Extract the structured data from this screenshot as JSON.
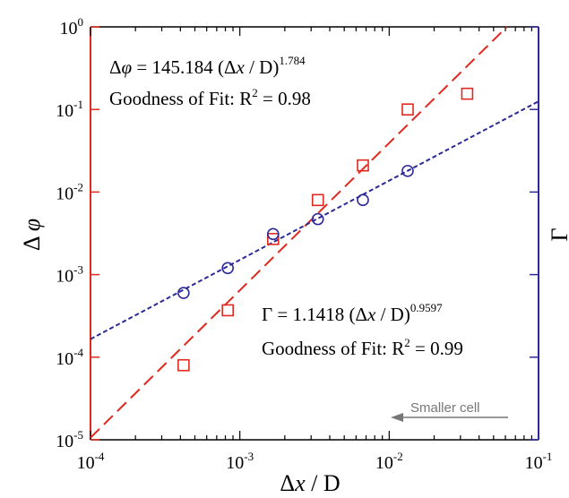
{
  "chart_data": {
    "type": "scatter",
    "xscale": "log",
    "yscale": "log",
    "xlim": [
      0.0001,
      0.1
    ],
    "ylim": [
      1e-05,
      1
    ],
    "xlabel_parts": [
      "Δ",
      "x",
      " / D"
    ],
    "ylabel_parts": [
      "Δ ",
      "φ"
    ],
    "right_label": "Γ",
    "x_ticks": [
      {
        "value": 0.0001,
        "base": "10",
        "exp": "-4"
      },
      {
        "value": 0.001,
        "base": "10",
        "exp": "-3"
      },
      {
        "value": 0.01,
        "base": "10",
        "exp": "-2"
      },
      {
        "value": 0.1,
        "base": "10",
        "exp": "-1"
      }
    ],
    "y_ticks": [
      {
        "value": 1,
        "base": "10",
        "exp": "0"
      },
      {
        "value": 0.1,
        "base": "10",
        "exp": "-1"
      },
      {
        "value": 0.01,
        "base": "10",
        "exp": "-2"
      },
      {
        "value": 0.001,
        "base": "10",
        "exp": "-3"
      },
      {
        "value": 0.0001,
        "base": "10",
        "exp": "-4"
      },
      {
        "value": 1e-05,
        "base": "10",
        "exp": "-5"
      }
    ],
    "series": [
      {
        "marker": "square",
        "color": "#e02a1f",
        "x": [
          0.00042,
          0.00083,
          0.00167,
          0.00333,
          0.00667,
          0.0133,
          0.0333
        ],
        "y": [
          8e-05,
          0.00037,
          0.0027,
          0.008,
          0.021,
          0.1,
          0.155
        ],
        "fit": {
          "coef": 145.184,
          "exp": 1.784,
          "style": "dashed"
        }
      },
      {
        "marker": "circle",
        "color": "#2c2a96",
        "x": [
          0.00042,
          0.00083,
          0.00167,
          0.00333,
          0.00667,
          0.0133
        ],
        "y": [
          0.0006,
          0.0012,
          0.0031,
          0.0047,
          0.008,
          0.018
        ],
        "fit": {
          "coef": 1.1418,
          "exp": 0.9597,
          "style": "dotted"
        }
      }
    ],
    "annotations": {
      "phi_eq_lhs": "Δ",
      "phi_eq_sym": "φ",
      "phi_eq_mid": " = 145.184 (Δ",
      "phi_eq_x": "x",
      "phi_eq_tail": " / D)",
      "phi_eq_exp": "1.784",
      "phi_fit_text": "Goodness of Fit: R",
      "phi_fit_sup": "2",
      "phi_fit_val": " = 0.98",
      "gamma_eq_lhs": "Γ = 1.1418 (Δ",
      "gamma_eq_x": "x",
      "gamma_eq_tail": " / D)",
      "gamma_eq_exp": "0.9597",
      "gamma_fit_text": "Goodness of Fit: R",
      "gamma_fit_sup": "2",
      "gamma_fit_val": " = 0.99",
      "arrow_note": "Smaller cell"
    },
    "colors": {
      "left_axis": "#e02a1f",
      "right_axis": "#2c2a96",
      "arrow": "#777777"
    }
  }
}
